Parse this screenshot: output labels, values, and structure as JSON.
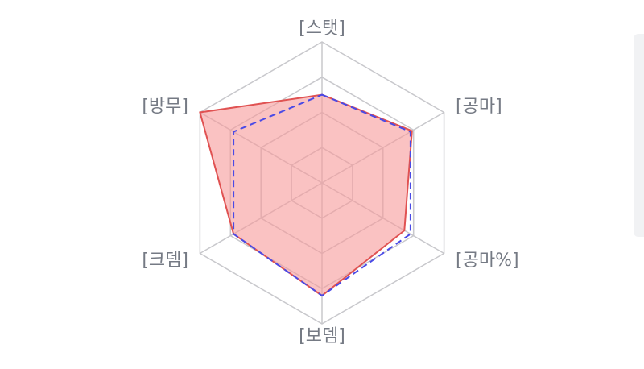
{
  "chart_data": {
    "type": "radar",
    "title": "",
    "axes": [
      "[스탯]",
      "[공마]",
      "[공마%]",
      "[보뎀]",
      "[크뎀]",
      "[방무]"
    ],
    "range": [
      0,
      4
    ],
    "grid_levels": 4,
    "series": [
      {
        "values": [
          2.5,
          2.95,
          2.7,
          3.2,
          2.9,
          4.0
        ],
        "color": "#e05252",
        "fill": "#f79a9a",
        "fill_opacity": 0.6,
        "line_style": "solid"
      },
      {
        "values": [
          2.5,
          2.9,
          2.9,
          3.2,
          2.9,
          2.9
        ],
        "color": "#4a4ae6",
        "line_style": "dashed"
      }
    ]
  }
}
